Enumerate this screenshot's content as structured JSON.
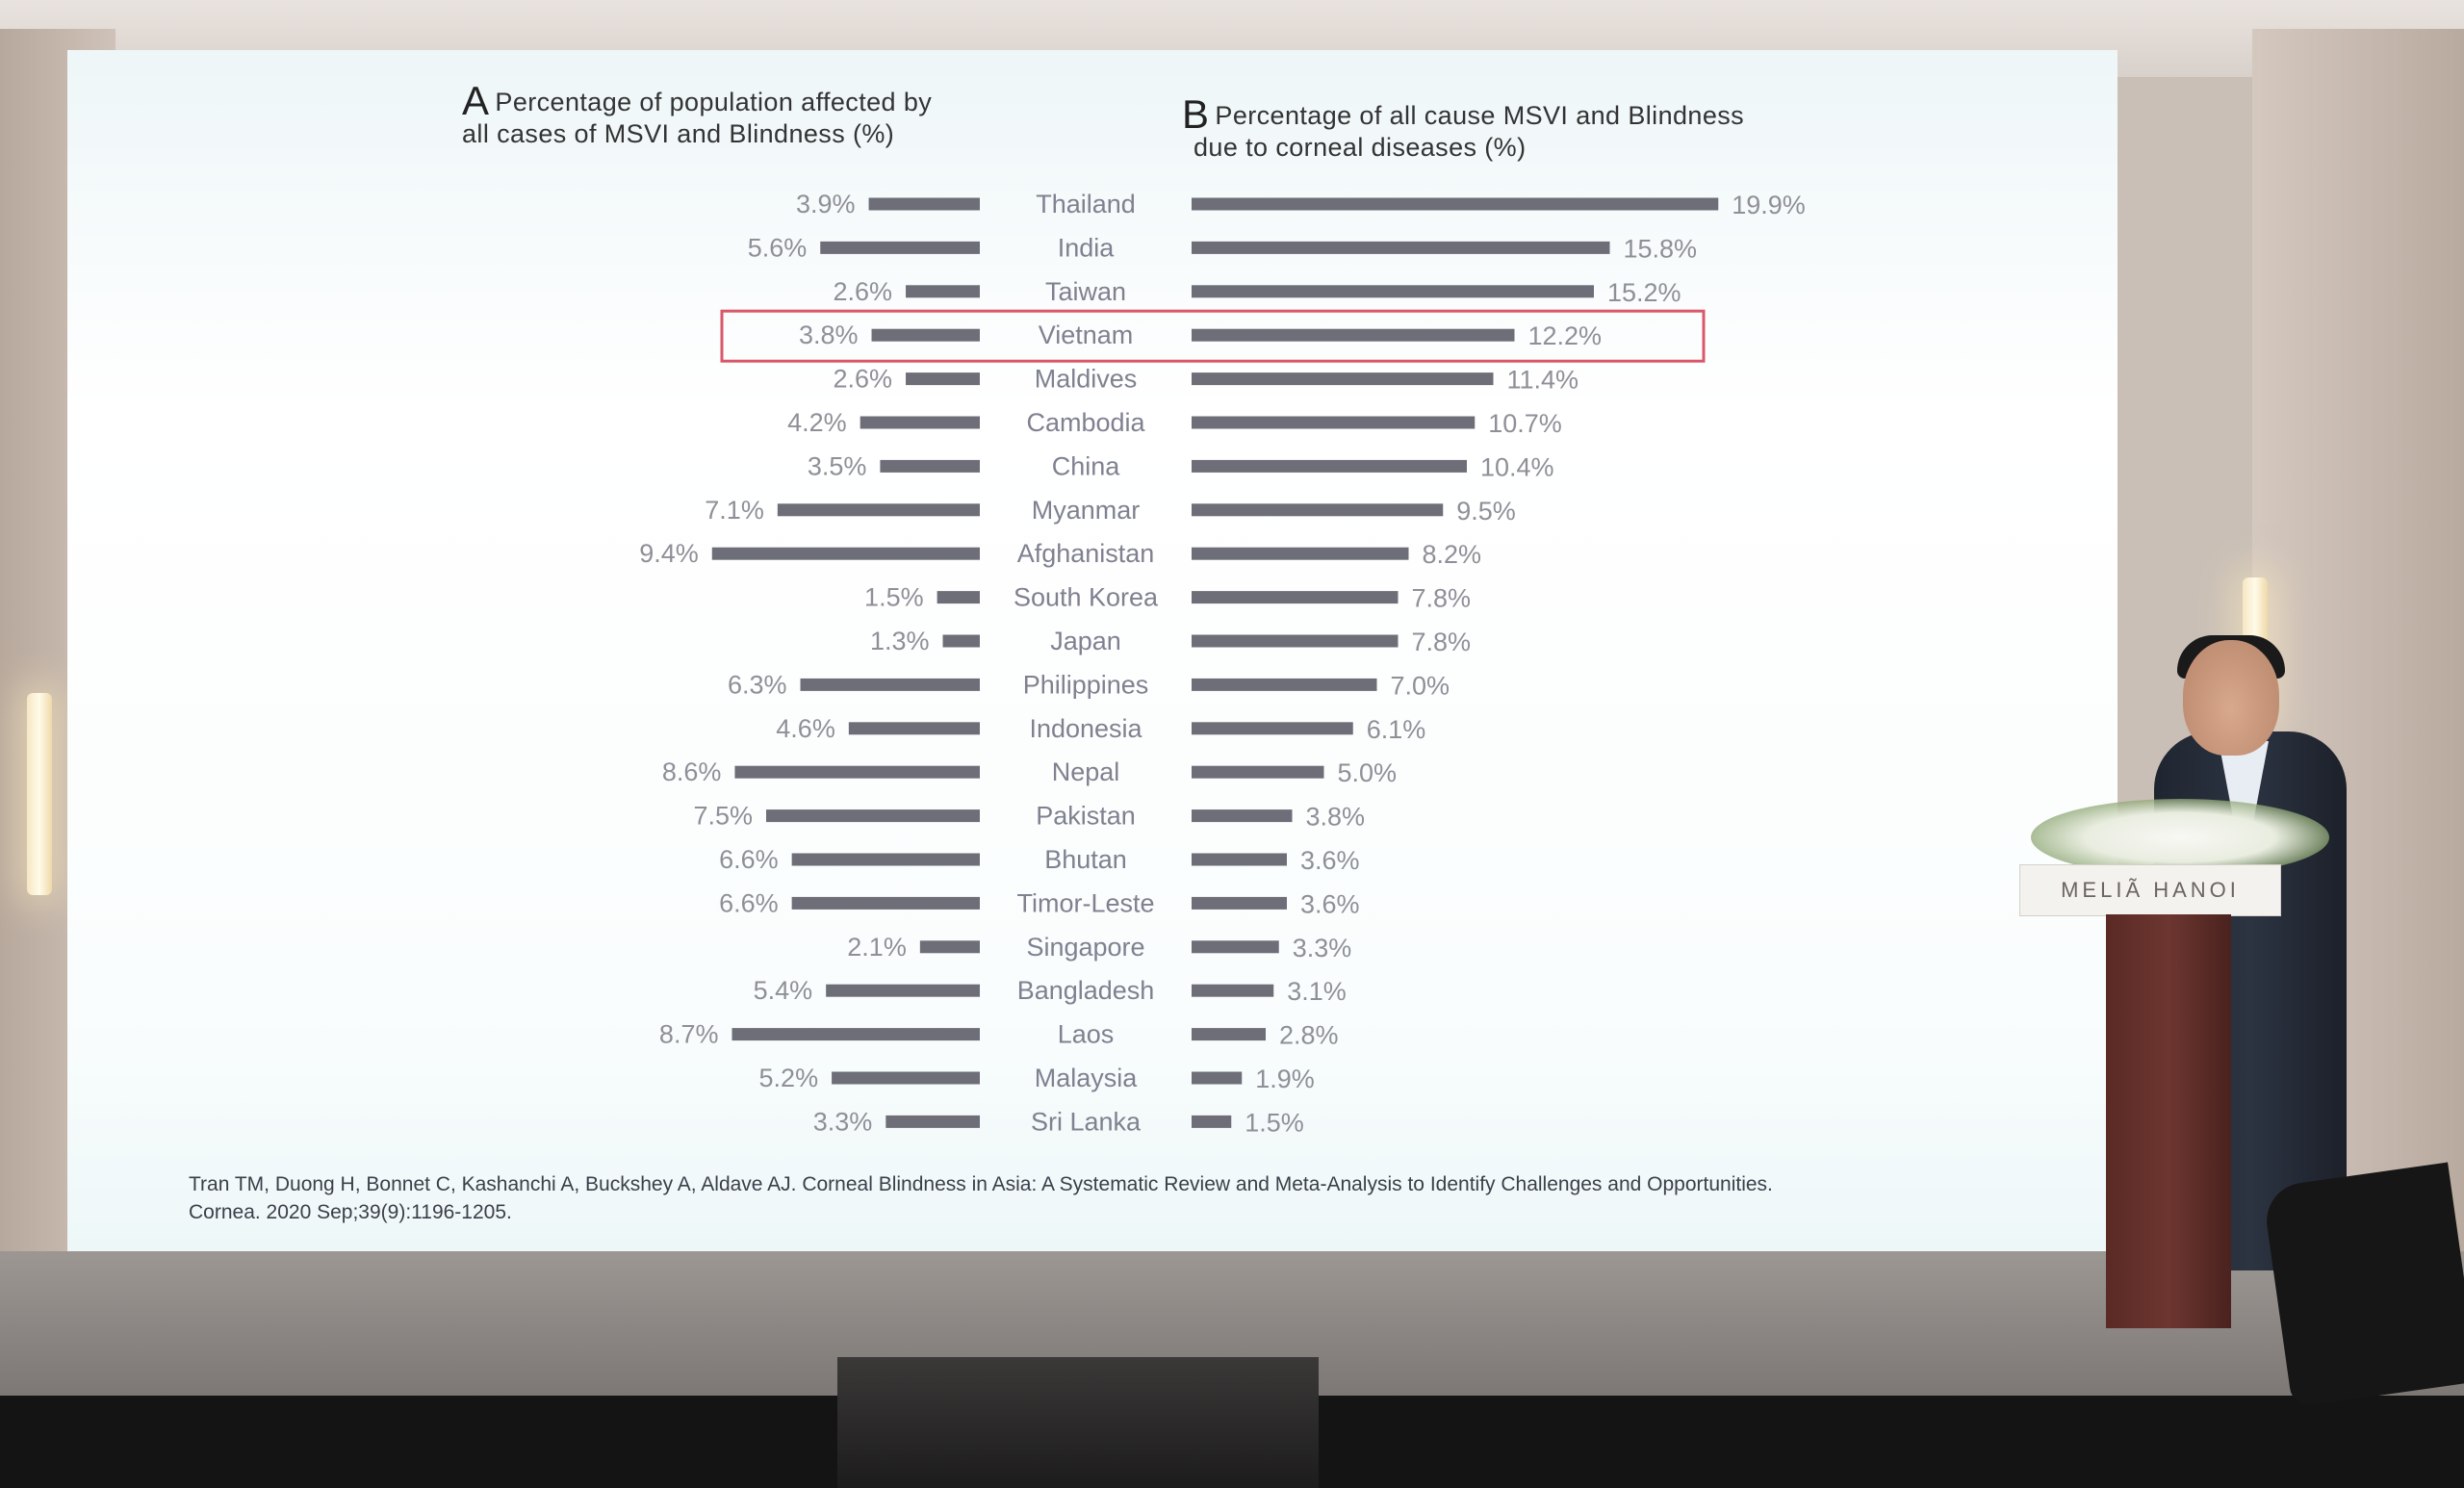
{
  "chart_data": [
    {
      "type": "bar",
      "orientation": "horizontal",
      "title_letter": "A",
      "title": "Percentage of population affected by all cases of MSVI and Blindness (%)",
      "title_line1": "Percentage of population affected by",
      "title_line2": "all cases of MSVI and Blindness (%)",
      "direction": "leftward",
      "categories": [
        "Thailand",
        "India",
        "Taiwan",
        "Vietnam",
        "Maldives",
        "Cambodia",
        "China",
        "Myanmar",
        "Afghanistan",
        "South Korea",
        "Japan",
        "Philippines",
        "Indonesia",
        "Nepal",
        "Pakistan",
        "Bhutan",
        "Timor-Leste",
        "Singapore",
        "Bangladesh",
        "Laos",
        "Malaysia",
        "Sri Lanka"
      ],
      "values": [
        3.9,
        5.6,
        2.6,
        3.8,
        2.6,
        4.2,
        3.5,
        7.1,
        9.4,
        1.5,
        1.3,
        6.3,
        4.6,
        8.6,
        7.5,
        6.6,
        6.6,
        2.1,
        5.4,
        8.7,
        5.2,
        3.3
      ],
      "labels": [
        "3.9%",
        "5.6%",
        "2.6%",
        "3.8%",
        "2.6%",
        "4.2%",
        "3.5%",
        "7.1%",
        "9.4%",
        "1.5%",
        "1.3%",
        "6.3%",
        "4.6%",
        "8.6%",
        "7.5%",
        "6.6%",
        "6.6%",
        "2.1%",
        "5.4%",
        "8.7%",
        "5.2%",
        "3.3%"
      ],
      "highlight_category": "Vietnam",
      "grid": false,
      "legend": "none"
    },
    {
      "type": "bar",
      "orientation": "horizontal",
      "title_letter": "B",
      "title": "Percentage of all cause MSVI and Blindness due to corneal diseases (%)",
      "title_line1": "Percentage of all cause MSVI and Blindness",
      "title_line2": "due to corneal diseases (%)",
      "direction": "rightward",
      "categories": [
        "Thailand",
        "India",
        "Taiwan",
        "Vietnam",
        "Maldives",
        "Cambodia",
        "China",
        "Myanmar",
        "Afghanistan",
        "South Korea",
        "Japan",
        "Philippines",
        "Indonesia",
        "Nepal",
        "Pakistan",
        "Bhutan",
        "Timor-Leste",
        "Singapore",
        "Bangladesh",
        "Laos",
        "Malaysia",
        "Sri Lanka"
      ],
      "values": [
        19.9,
        15.8,
        15.2,
        12.2,
        11.4,
        10.7,
        10.4,
        9.5,
        8.2,
        7.8,
        7.8,
        7.0,
        6.1,
        5.0,
        3.8,
        3.6,
        3.6,
        3.3,
        3.1,
        2.8,
        1.9,
        1.5
      ],
      "labels": [
        "19.9%",
        "15.8%",
        "15.2%",
        "12.2%",
        "11.4%",
        "10.7%",
        "10.4%",
        "9.5%",
        "8.2%",
        "7.8%",
        "7.8%",
        "7.0%",
        "6.1%",
        "5.0%",
        "3.8%",
        "3.6%",
        "3.6%",
        "3.3%",
        "3.1%",
        "2.8%",
        "1.9%",
        "1.5%"
      ],
      "highlight_category": "Vietnam",
      "grid": false,
      "legend": "none"
    }
  ],
  "colors": {
    "bar": "#6e6e79",
    "value_label": "#8f8f98",
    "category_label": "#7f8190",
    "highlight_box": "#d9586a"
  },
  "citation": {
    "line1": "Tran TM, Duong H, Bonnet C, Kashanchi A, Buckshey A, Aldave AJ. Corneal Blindness in Asia: A Systematic Review and Meta-Analysis to Identify Challenges and Opportunities.",
    "line2": "Cornea. 2020 Sep;39(9):1196-1205."
  },
  "venue": {
    "podium_sign": "MELIÃ HANOI"
  }
}
